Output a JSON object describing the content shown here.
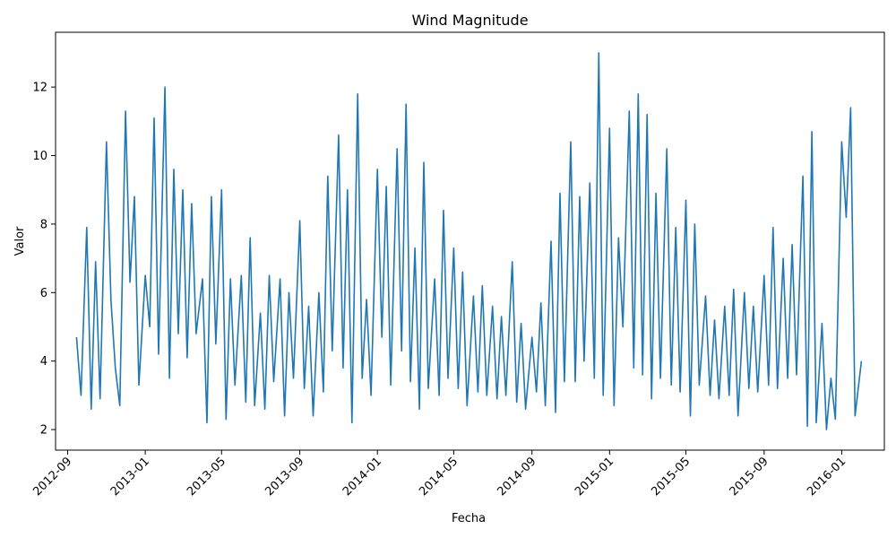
{
  "chart_data": {
    "type": "line",
    "title": "Wind Magnitude",
    "xlabel": "Fecha",
    "ylabel": "Valor",
    "xlim": [
      "2012-08-13",
      "2016-03-08"
    ],
    "ylim": [
      1.4,
      13.6
    ],
    "x_ticks": [
      "2012-09",
      "2013-01",
      "2013-05",
      "2013-09",
      "2014-01",
      "2014-05",
      "2014-09",
      "2015-01",
      "2015-05",
      "2015-09",
      "2016-01"
    ],
    "y_ticks": [
      2,
      4,
      6,
      8,
      10,
      12
    ],
    "grid": false,
    "legend": "none",
    "color": "#1f77b4",
    "series": [
      {
        "x": [
          "2012-09-15",
          "2012-09-22",
          "2012-10-01",
          "2012-10-08",
          "2012-10-15",
          "2012-10-22",
          "2012-11-01",
          "2012-11-08",
          "2012-11-15",
          "2012-11-22",
          "2012-12-01",
          "2012-12-08",
          "2012-12-15",
          "2012-12-22",
          "2013-01-01",
          "2013-01-08",
          "2013-01-15",
          "2013-01-22",
          "2013-02-01",
          "2013-02-08",
          "2013-02-15",
          "2013-02-22",
          "2013-03-01",
          "2013-03-08",
          "2013-03-15",
          "2013-03-22",
          "2013-04-01",
          "2013-04-08",
          "2013-04-15",
          "2013-04-22",
          "2013-05-01",
          "2013-05-08",
          "2013-05-15",
          "2013-05-22",
          "2013-06-01",
          "2013-06-08",
          "2013-06-15",
          "2013-06-22",
          "2013-07-01",
          "2013-07-08",
          "2013-07-15",
          "2013-07-22",
          "2013-08-01",
          "2013-08-08",
          "2013-08-15",
          "2013-08-22",
          "2013-09-01",
          "2013-09-08",
          "2013-09-15",
          "2013-09-22",
          "2013-10-01",
          "2013-10-08",
          "2013-10-15",
          "2013-10-22",
          "2013-11-01",
          "2013-11-08",
          "2013-11-15",
          "2013-11-22",
          "2013-12-01",
          "2013-12-08",
          "2013-12-15",
          "2013-12-22",
          "2014-01-01",
          "2014-01-08",
          "2014-01-15",
          "2014-01-22",
          "2014-02-01",
          "2014-02-08",
          "2014-02-15",
          "2014-02-22",
          "2014-03-01",
          "2014-03-08",
          "2014-03-15",
          "2014-03-22",
          "2014-04-01",
          "2014-04-08",
          "2014-04-15",
          "2014-04-22",
          "2014-05-01",
          "2014-05-08",
          "2014-05-15",
          "2014-05-22",
          "2014-06-01",
          "2014-06-08",
          "2014-06-15",
          "2014-06-22",
          "2014-07-01",
          "2014-07-08",
          "2014-07-15",
          "2014-07-22",
          "2014-08-01",
          "2014-08-08",
          "2014-08-15",
          "2014-08-22",
          "2014-09-01",
          "2014-09-08",
          "2014-09-15",
          "2014-09-22",
          "2014-10-01",
          "2014-10-08",
          "2014-10-15",
          "2014-10-22",
          "2014-11-01",
          "2014-11-08",
          "2014-11-15",
          "2014-11-22",
          "2014-12-01",
          "2014-12-08",
          "2014-12-15",
          "2014-12-22",
          "2015-01-01",
          "2015-01-08",
          "2015-01-15",
          "2015-01-22",
          "2015-02-01",
          "2015-02-08",
          "2015-02-15",
          "2015-02-22",
          "2015-03-01",
          "2015-03-08",
          "2015-03-15",
          "2015-03-22",
          "2015-04-01",
          "2015-04-08",
          "2015-04-15",
          "2015-04-22",
          "2015-05-01",
          "2015-05-08",
          "2015-05-15",
          "2015-05-22",
          "2015-06-01",
          "2015-06-08",
          "2015-06-15",
          "2015-06-22",
          "2015-07-01",
          "2015-07-08",
          "2015-07-15",
          "2015-07-22",
          "2015-08-01",
          "2015-08-08",
          "2015-08-15",
          "2015-08-22",
          "2015-09-01",
          "2015-09-08",
          "2015-09-15",
          "2015-09-22",
          "2015-10-01",
          "2015-10-08",
          "2015-10-15",
          "2015-10-22",
          "2015-11-01",
          "2015-11-08",
          "2015-11-15",
          "2015-11-22",
          "2015-12-01",
          "2015-12-08",
          "2015-12-15",
          "2015-12-22",
          "2016-01-01",
          "2016-01-08",
          "2016-01-15",
          "2016-01-22",
          "2016-02-01"
        ],
        "values": [
          4.7,
          3.0,
          7.9,
          2.6,
          6.9,
          2.9,
          10.4,
          5.8,
          3.8,
          2.7,
          11.3,
          6.3,
          8.8,
          3.3,
          6.5,
          5.0,
          11.1,
          4.2,
          12.0,
          3.5,
          9.6,
          4.8,
          9.0,
          4.1,
          8.6,
          4.8,
          6.4,
          2.2,
          8.8,
          4.5,
          9.0,
          2.3,
          6.4,
          3.3,
          6.5,
          2.8,
          7.6,
          2.7,
          5.4,
          2.6,
          6.5,
          3.4,
          6.4,
          2.4,
          6.0,
          3.5,
          8.1,
          3.2,
          5.6,
          2.4,
          6.0,
          3.1,
          9.4,
          4.3,
          10.6,
          3.8,
          9.0,
          2.2,
          11.8,
          3.5,
          5.8,
          3.0,
          9.6,
          4.7,
          9.1,
          3.3,
          10.2,
          4.3,
          11.5,
          3.4,
          7.3,
          2.6,
          9.8,
          3.2,
          6.4,
          3.0,
          8.4,
          3.5,
          7.3,
          3.2,
          6.6,
          2.7,
          5.9,
          3.1,
          6.2,
          3.0,
          5.6,
          2.9,
          5.3,
          3.0,
          6.9,
          2.8,
          5.1,
          2.6,
          4.7,
          3.1,
          5.7,
          2.7,
          7.5,
          2.5,
          8.9,
          3.4,
          10.4,
          3.4,
          8.8,
          4.0,
          9.2,
          3.5,
          13.0,
          3.0,
          10.8,
          2.7,
          7.6,
          5.0,
          11.3,
          3.8,
          11.8,
          3.6,
          11.2,
          2.9,
          8.9,
          3.5,
          10.2,
          3.3,
          7.9,
          3.1,
          8.7,
          2.4,
          8.0,
          3.3,
          5.9,
          3.0,
          5.2,
          2.9,
          5.6,
          3.0,
          6.1,
          2.4,
          6.0,
          3.2,
          5.6,
          3.1,
          6.5,
          3.3,
          7.9,
          3.2,
          7.0,
          3.5,
          7.4,
          3.6,
          9.4,
          2.1,
          10.7,
          2.2,
          5.1,
          2.0,
          3.5,
          2.3,
          10.4,
          8.2,
          11.4,
          2.4,
          4.0
        ]
      }
    ]
  }
}
